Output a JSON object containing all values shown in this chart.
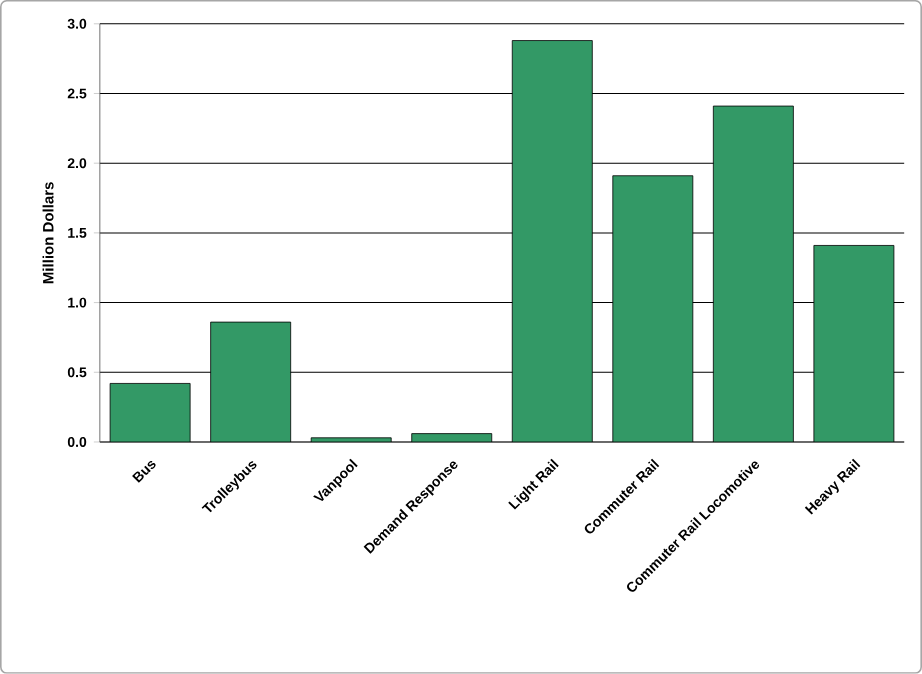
{
  "chart_data": {
    "type": "bar",
    "ylabel": "Million Dollars",
    "categories": [
      "Bus",
      "Trolleybus",
      "Vanpool",
      "Demand Response",
      "Light Rail",
      "Commuter Rail",
      "Commuter Rail Locomotive",
      "Heavy Rail"
    ],
    "values": [
      0.42,
      0.86,
      0.03,
      0.06,
      2.88,
      1.91,
      2.41,
      1.41
    ],
    "color": "#339966",
    "ylim": [
      0,
      3.0
    ],
    "yticks": [
      {
        "value": 0,
        "label": "0.0"
      },
      {
        "value": 0.5,
        "label": "0.5"
      },
      {
        "value": 1.0,
        "label": "1.0"
      },
      {
        "value": 1.5,
        "label": "1.5"
      },
      {
        "value": 2.0,
        "label": "2.0"
      },
      {
        "value": 2.5,
        "label": "2.5"
      },
      {
        "value": 3.0,
        "label": "3.0"
      }
    ],
    "grid": "y"
  }
}
